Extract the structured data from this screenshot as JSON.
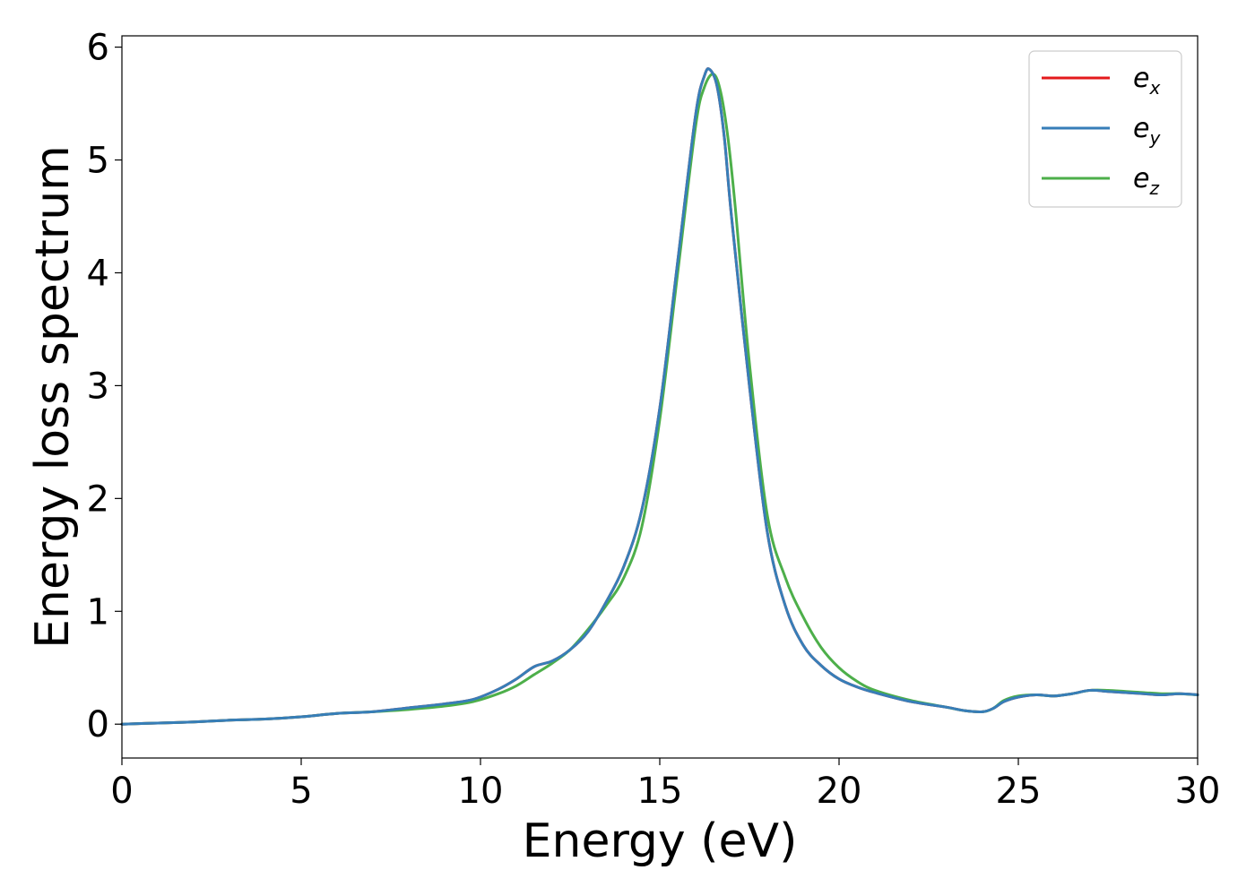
{
  "chart_data": {
    "type": "line",
    "xlabel": "Energy (eV)",
    "ylabel": "Energy loss spectrum",
    "xlim": [
      0,
      30
    ],
    "ylim": [
      -0.3,
      6.1
    ],
    "xticks": [
      0,
      5,
      10,
      15,
      20,
      25,
      30
    ],
    "yticks": [
      0,
      1,
      2,
      3,
      4,
      5,
      6
    ],
    "grid": false,
    "legend_position": "top-right",
    "series": [
      {
        "name": "e_x",
        "label_base": "e",
        "label_sub": "x",
        "color": "#e41a1c",
        "x": [
          0,
          1,
          2,
          3,
          4,
          5,
          6,
          7,
          8,
          9,
          9.8,
          10.5,
          11,
          11.5,
          12,
          12.5,
          13,
          13.5,
          14,
          14.5,
          15,
          15.5,
          16,
          16.25,
          16.4,
          16.6,
          16.8,
          17,
          17.5,
          18,
          18.5,
          19,
          19.5,
          20,
          20.5,
          21,
          22,
          23,
          23.5,
          24,
          24.3,
          24.6,
          25,
          25.5,
          26,
          26.5,
          27,
          27.5,
          28,
          28.5,
          29,
          29.5,
          30
        ],
        "y": [
          0,
          0.01,
          0.02,
          0.035,
          0.045,
          0.065,
          0.095,
          0.11,
          0.145,
          0.18,
          0.22,
          0.31,
          0.4,
          0.51,
          0.56,
          0.66,
          0.82,
          1.08,
          1.4,
          1.9,
          2.8,
          4.1,
          5.4,
          5.75,
          5.8,
          5.65,
          5.2,
          4.5,
          3.0,
          1.7,
          1.05,
          0.7,
          0.52,
          0.4,
          0.33,
          0.28,
          0.2,
          0.15,
          0.12,
          0.11,
          0.14,
          0.2,
          0.24,
          0.26,
          0.25,
          0.27,
          0.3,
          0.29,
          0.28,
          0.27,
          0.26,
          0.27,
          0.26
        ]
      },
      {
        "name": "e_y",
        "label_base": "e",
        "label_sub": "y",
        "color": "#377eb8",
        "x": [
          0,
          1,
          2,
          3,
          4,
          5,
          6,
          7,
          8,
          9,
          9.8,
          10.5,
          11,
          11.5,
          12,
          12.5,
          13,
          13.5,
          14,
          14.5,
          15,
          15.5,
          16,
          16.25,
          16.4,
          16.6,
          16.8,
          17,
          17.5,
          18,
          18.5,
          19,
          19.5,
          20,
          20.5,
          21,
          22,
          23,
          23.5,
          24,
          24.3,
          24.6,
          25,
          25.5,
          26,
          26.5,
          27,
          27.5,
          28,
          28.5,
          29,
          29.5,
          30
        ],
        "y": [
          0,
          0.01,
          0.02,
          0.035,
          0.045,
          0.065,
          0.095,
          0.11,
          0.145,
          0.18,
          0.22,
          0.31,
          0.4,
          0.51,
          0.56,
          0.66,
          0.82,
          1.08,
          1.4,
          1.9,
          2.8,
          4.1,
          5.4,
          5.75,
          5.8,
          5.65,
          5.2,
          4.5,
          3.0,
          1.7,
          1.05,
          0.7,
          0.52,
          0.4,
          0.33,
          0.28,
          0.2,
          0.15,
          0.12,
          0.11,
          0.14,
          0.2,
          0.24,
          0.26,
          0.25,
          0.27,
          0.3,
          0.29,
          0.28,
          0.27,
          0.26,
          0.27,
          0.26
        ]
      },
      {
        "name": "e_z",
        "label_base": "e",
        "label_sub": "z",
        "color": "#4daf4a",
        "x": [
          0,
          1,
          2,
          3,
          4,
          5,
          6,
          7,
          8,
          9,
          9.8,
          10.5,
          11,
          11.5,
          12,
          12.5,
          13,
          13.5,
          14,
          14.5,
          15,
          15.5,
          16,
          16.25,
          16.5,
          16.7,
          16.9,
          17.1,
          17.5,
          18,
          18.5,
          19,
          19.5,
          20,
          20.5,
          21,
          22,
          23,
          23.5,
          24,
          24.3,
          24.6,
          25,
          25.5,
          26,
          26.5,
          27,
          27.5,
          28,
          28.5,
          29,
          29.5,
          30
        ],
        "y": [
          0,
          0.01,
          0.02,
          0.035,
          0.045,
          0.065,
          0.095,
          0.11,
          0.13,
          0.16,
          0.2,
          0.27,
          0.34,
          0.44,
          0.54,
          0.66,
          0.84,
          1.05,
          1.3,
          1.75,
          2.7,
          4.0,
          5.3,
          5.65,
          5.76,
          5.6,
          5.2,
          4.6,
          3.2,
          1.85,
          1.3,
          0.95,
          0.68,
          0.5,
          0.38,
          0.3,
          0.21,
          0.15,
          0.12,
          0.11,
          0.14,
          0.21,
          0.25,
          0.26,
          0.25,
          0.27,
          0.3,
          0.3,
          0.29,
          0.28,
          0.27,
          0.27,
          0.26
        ]
      }
    ]
  }
}
